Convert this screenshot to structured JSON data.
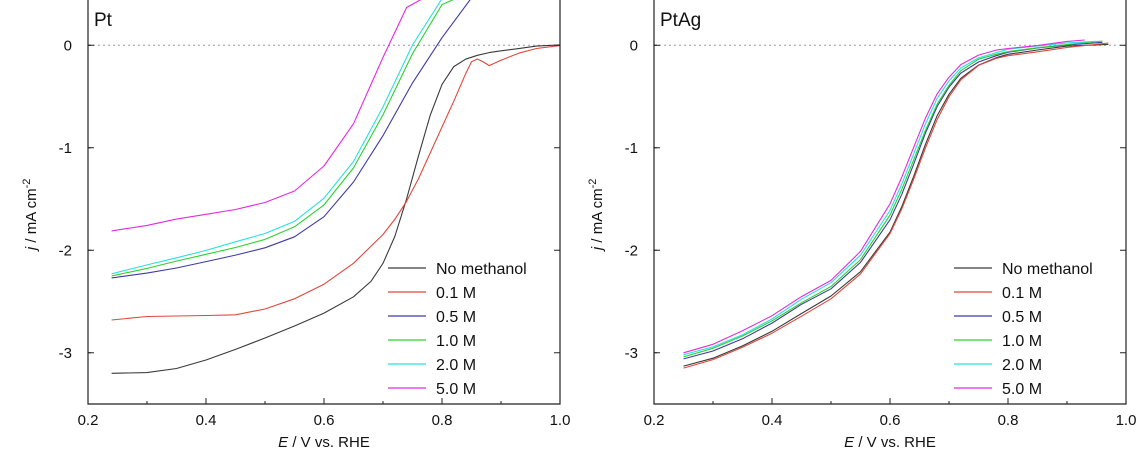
{
  "colors": {
    "No methanol": "#3a3a3a",
    "0.1 M": "#e0473d",
    "0.5 M": "#3d3aa8",
    "1.0 M": "#2fd02f",
    "2.0 M": "#29e0e0",
    "5.0 M": "#e22ae2"
  },
  "chart_data": [
    {
      "type": "line",
      "panel_label": "Pt",
      "xlabel_italic": "E",
      "xlabel_rest": " / V vs. RHE",
      "ylabel_italic": "j",
      "ylabel_rest": " / mA cm",
      "ylabel_sup": "-2",
      "xlim": [
        0.2,
        1.0
      ],
      "ylim": [
        -3.5,
        0.5
      ],
      "xticks": [
        "0.2",
        "0.4",
        "0.6",
        "0.8",
        "1.0"
      ],
      "yticks": [
        "-3",
        "-2",
        "-1",
        "0"
      ],
      "zero_line": true,
      "legend": "bottom-right",
      "series": [
        {
          "name": "No methanol",
          "x": [
            0.24,
            0.3,
            0.35,
            0.4,
            0.45,
            0.5,
            0.55,
            0.6,
            0.65,
            0.68,
            0.7,
            0.72,
            0.74,
            0.76,
            0.78,
            0.8,
            0.82,
            0.84,
            0.86,
            0.88,
            0.9,
            0.93,
            0.96,
            1.0
          ],
          "y": [
            -3.2,
            -3.19,
            -3.15,
            -3.07,
            -2.97,
            -2.86,
            -2.74,
            -2.61,
            -2.45,
            -2.3,
            -2.13,
            -1.87,
            -1.5,
            -1.08,
            -0.68,
            -0.38,
            -0.21,
            -0.14,
            -0.1,
            -0.07,
            -0.05,
            -0.03,
            -0.01,
            0.0
          ]
        },
        {
          "name": "0.1 M",
          "x": [
            0.24,
            0.3,
            0.4,
            0.45,
            0.5,
            0.55,
            0.6,
            0.65,
            0.7,
            0.72,
            0.74,
            0.76,
            0.78,
            0.8,
            0.82,
            0.84,
            0.85,
            0.86,
            0.87,
            0.88,
            0.9,
            0.93,
            0.96,
            1.0
          ],
          "y": [
            -2.68,
            -2.65,
            -2.64,
            -2.63,
            -2.57,
            -2.47,
            -2.33,
            -2.13,
            -1.85,
            -1.7,
            -1.52,
            -1.3,
            -1.05,
            -0.8,
            -0.55,
            -0.28,
            -0.16,
            -0.13,
            -0.16,
            -0.2,
            -0.15,
            -0.08,
            -0.03,
            0.0
          ]
        },
        {
          "name": "0.5 M",
          "x": [
            0.24,
            0.3,
            0.35,
            0.4,
            0.45,
            0.5,
            0.55,
            0.6,
            0.65,
            0.7,
            0.75,
            0.8,
            0.85,
            0.88
          ],
          "y": [
            -2.27,
            -2.22,
            -2.17,
            -2.11,
            -2.05,
            -1.98,
            -1.87,
            -1.67,
            -1.33,
            -0.88,
            -0.37,
            0.07,
            0.46,
            0.5
          ]
        },
        {
          "name": "1.0 M",
          "x": [
            0.24,
            0.3,
            0.35,
            0.4,
            0.45,
            0.5,
            0.55,
            0.6,
            0.65,
            0.7,
            0.75,
            0.8,
            0.84
          ],
          "y": [
            -2.25,
            -2.18,
            -2.11,
            -2.04,
            -1.97,
            -1.89,
            -1.77,
            -1.56,
            -1.2,
            -0.68,
            -0.08,
            0.4,
            0.5
          ]
        },
        {
          "name": "2.0 M",
          "x": [
            0.24,
            0.3,
            0.35,
            0.4,
            0.45,
            0.5,
            0.55,
            0.6,
            0.65,
            0.7,
            0.75,
            0.8,
            0.83
          ],
          "y": [
            -2.23,
            -2.14,
            -2.07,
            -2.0,
            -1.92,
            -1.84,
            -1.72,
            -1.49,
            -1.13,
            -0.6,
            0.0,
            0.45,
            0.5
          ]
        },
        {
          "name": "5.0 M",
          "x": [
            0.24,
            0.3,
            0.35,
            0.4,
            0.45,
            0.5,
            0.55,
            0.6,
            0.65,
            0.7,
            0.74,
            0.78,
            0.79
          ],
          "y": [
            -1.81,
            -1.76,
            -1.7,
            -1.65,
            -1.6,
            -1.53,
            -1.42,
            -1.18,
            -0.77,
            -0.12,
            0.37,
            0.5,
            0.5
          ]
        }
      ]
    },
    {
      "type": "line",
      "panel_label": "PtAg",
      "xlabel_italic": "E",
      "xlabel_rest": " / V vs. RHE",
      "ylabel_italic": "j",
      "ylabel_rest": " / mA cm",
      "ylabel_sup": "-2",
      "xlim": [
        0.2,
        1.0
      ],
      "ylim": [
        -3.5,
        0.5
      ],
      "xticks": [
        "0.2",
        "0.4",
        "0.6",
        "0.8",
        "1.0"
      ],
      "yticks": [
        "-3",
        "-2",
        "-1",
        "0"
      ],
      "zero_line": true,
      "legend": "bottom-right",
      "series": [
        {
          "name": "No methanol",
          "x": [
            0.25,
            0.3,
            0.35,
            0.4,
            0.45,
            0.5,
            0.55,
            0.6,
            0.62,
            0.64,
            0.66,
            0.68,
            0.7,
            0.72,
            0.75,
            0.78,
            0.8,
            0.85,
            0.9,
            0.97
          ],
          "y": [
            -3.13,
            -3.05,
            -2.93,
            -2.79,
            -2.62,
            -2.45,
            -2.21,
            -1.82,
            -1.57,
            -1.28,
            -0.97,
            -0.69,
            -0.48,
            -0.32,
            -0.19,
            -0.12,
            -0.09,
            -0.05,
            -0.01,
            0.01
          ]
        },
        {
          "name": "0.1 M",
          "x": [
            0.25,
            0.3,
            0.35,
            0.4,
            0.45,
            0.5,
            0.55,
            0.6,
            0.62,
            0.64,
            0.66,
            0.68,
            0.7,
            0.72,
            0.75,
            0.78,
            0.8,
            0.85,
            0.9,
            0.97
          ],
          "y": [
            -3.15,
            -3.07,
            -2.95,
            -2.81,
            -2.64,
            -2.47,
            -2.23,
            -1.84,
            -1.6,
            -1.31,
            -1.0,
            -0.72,
            -0.5,
            -0.34,
            -0.2,
            -0.13,
            -0.1,
            -0.06,
            -0.02,
            0.02
          ]
        },
        {
          "name": "0.5 M",
          "x": [
            0.25,
            0.3,
            0.35,
            0.4,
            0.45,
            0.5,
            0.55,
            0.6,
            0.62,
            0.64,
            0.66,
            0.68,
            0.7,
            0.72,
            0.75,
            0.78,
            0.8,
            0.85,
            0.9,
            0.96
          ],
          "y": [
            -3.06,
            -2.98,
            -2.86,
            -2.71,
            -2.53,
            -2.38,
            -2.12,
            -1.7,
            -1.45,
            -1.16,
            -0.86,
            -0.6,
            -0.41,
            -0.27,
            -0.16,
            -0.1,
            -0.07,
            -0.03,
            0.0,
            0.03
          ]
        },
        {
          "name": "1.0 M",
          "x": [
            0.25,
            0.3,
            0.35,
            0.4,
            0.45,
            0.5,
            0.55,
            0.6,
            0.62,
            0.64,
            0.66,
            0.68,
            0.7,
            0.72,
            0.75,
            0.78,
            0.8,
            0.85,
            0.9,
            0.96
          ],
          "y": [
            -3.04,
            -2.96,
            -2.84,
            -2.69,
            -2.51,
            -2.35,
            -2.09,
            -1.66,
            -1.41,
            -1.12,
            -0.83,
            -0.57,
            -0.39,
            -0.25,
            -0.14,
            -0.09,
            -0.06,
            -0.02,
            0.01,
            0.04
          ]
        },
        {
          "name": "2.0 M",
          "x": [
            0.25,
            0.3,
            0.35,
            0.4,
            0.45,
            0.5,
            0.55,
            0.6,
            0.62,
            0.64,
            0.66,
            0.68,
            0.7,
            0.72,
            0.75,
            0.78,
            0.8,
            0.85,
            0.9,
            0.95
          ],
          "y": [
            -3.02,
            -2.94,
            -2.82,
            -2.67,
            -2.48,
            -2.32,
            -2.05,
            -1.61,
            -1.35,
            -1.06,
            -0.77,
            -0.52,
            -0.35,
            -0.22,
            -0.12,
            -0.07,
            -0.04,
            -0.01,
            0.02,
            0.04
          ]
        },
        {
          "name": "5.0 M",
          "x": [
            0.25,
            0.3,
            0.35,
            0.4,
            0.45,
            0.5,
            0.55,
            0.6,
            0.62,
            0.64,
            0.66,
            0.68,
            0.7,
            0.72,
            0.75,
            0.78,
            0.8,
            0.85,
            0.9,
            0.93
          ],
          "y": [
            -3.0,
            -2.92,
            -2.79,
            -2.64,
            -2.45,
            -2.29,
            -2.01,
            -1.55,
            -1.29,
            -1.0,
            -0.71,
            -0.47,
            -0.31,
            -0.19,
            -0.1,
            -0.05,
            -0.03,
            0.0,
            0.04,
            0.05
          ]
        }
      ]
    }
  ]
}
